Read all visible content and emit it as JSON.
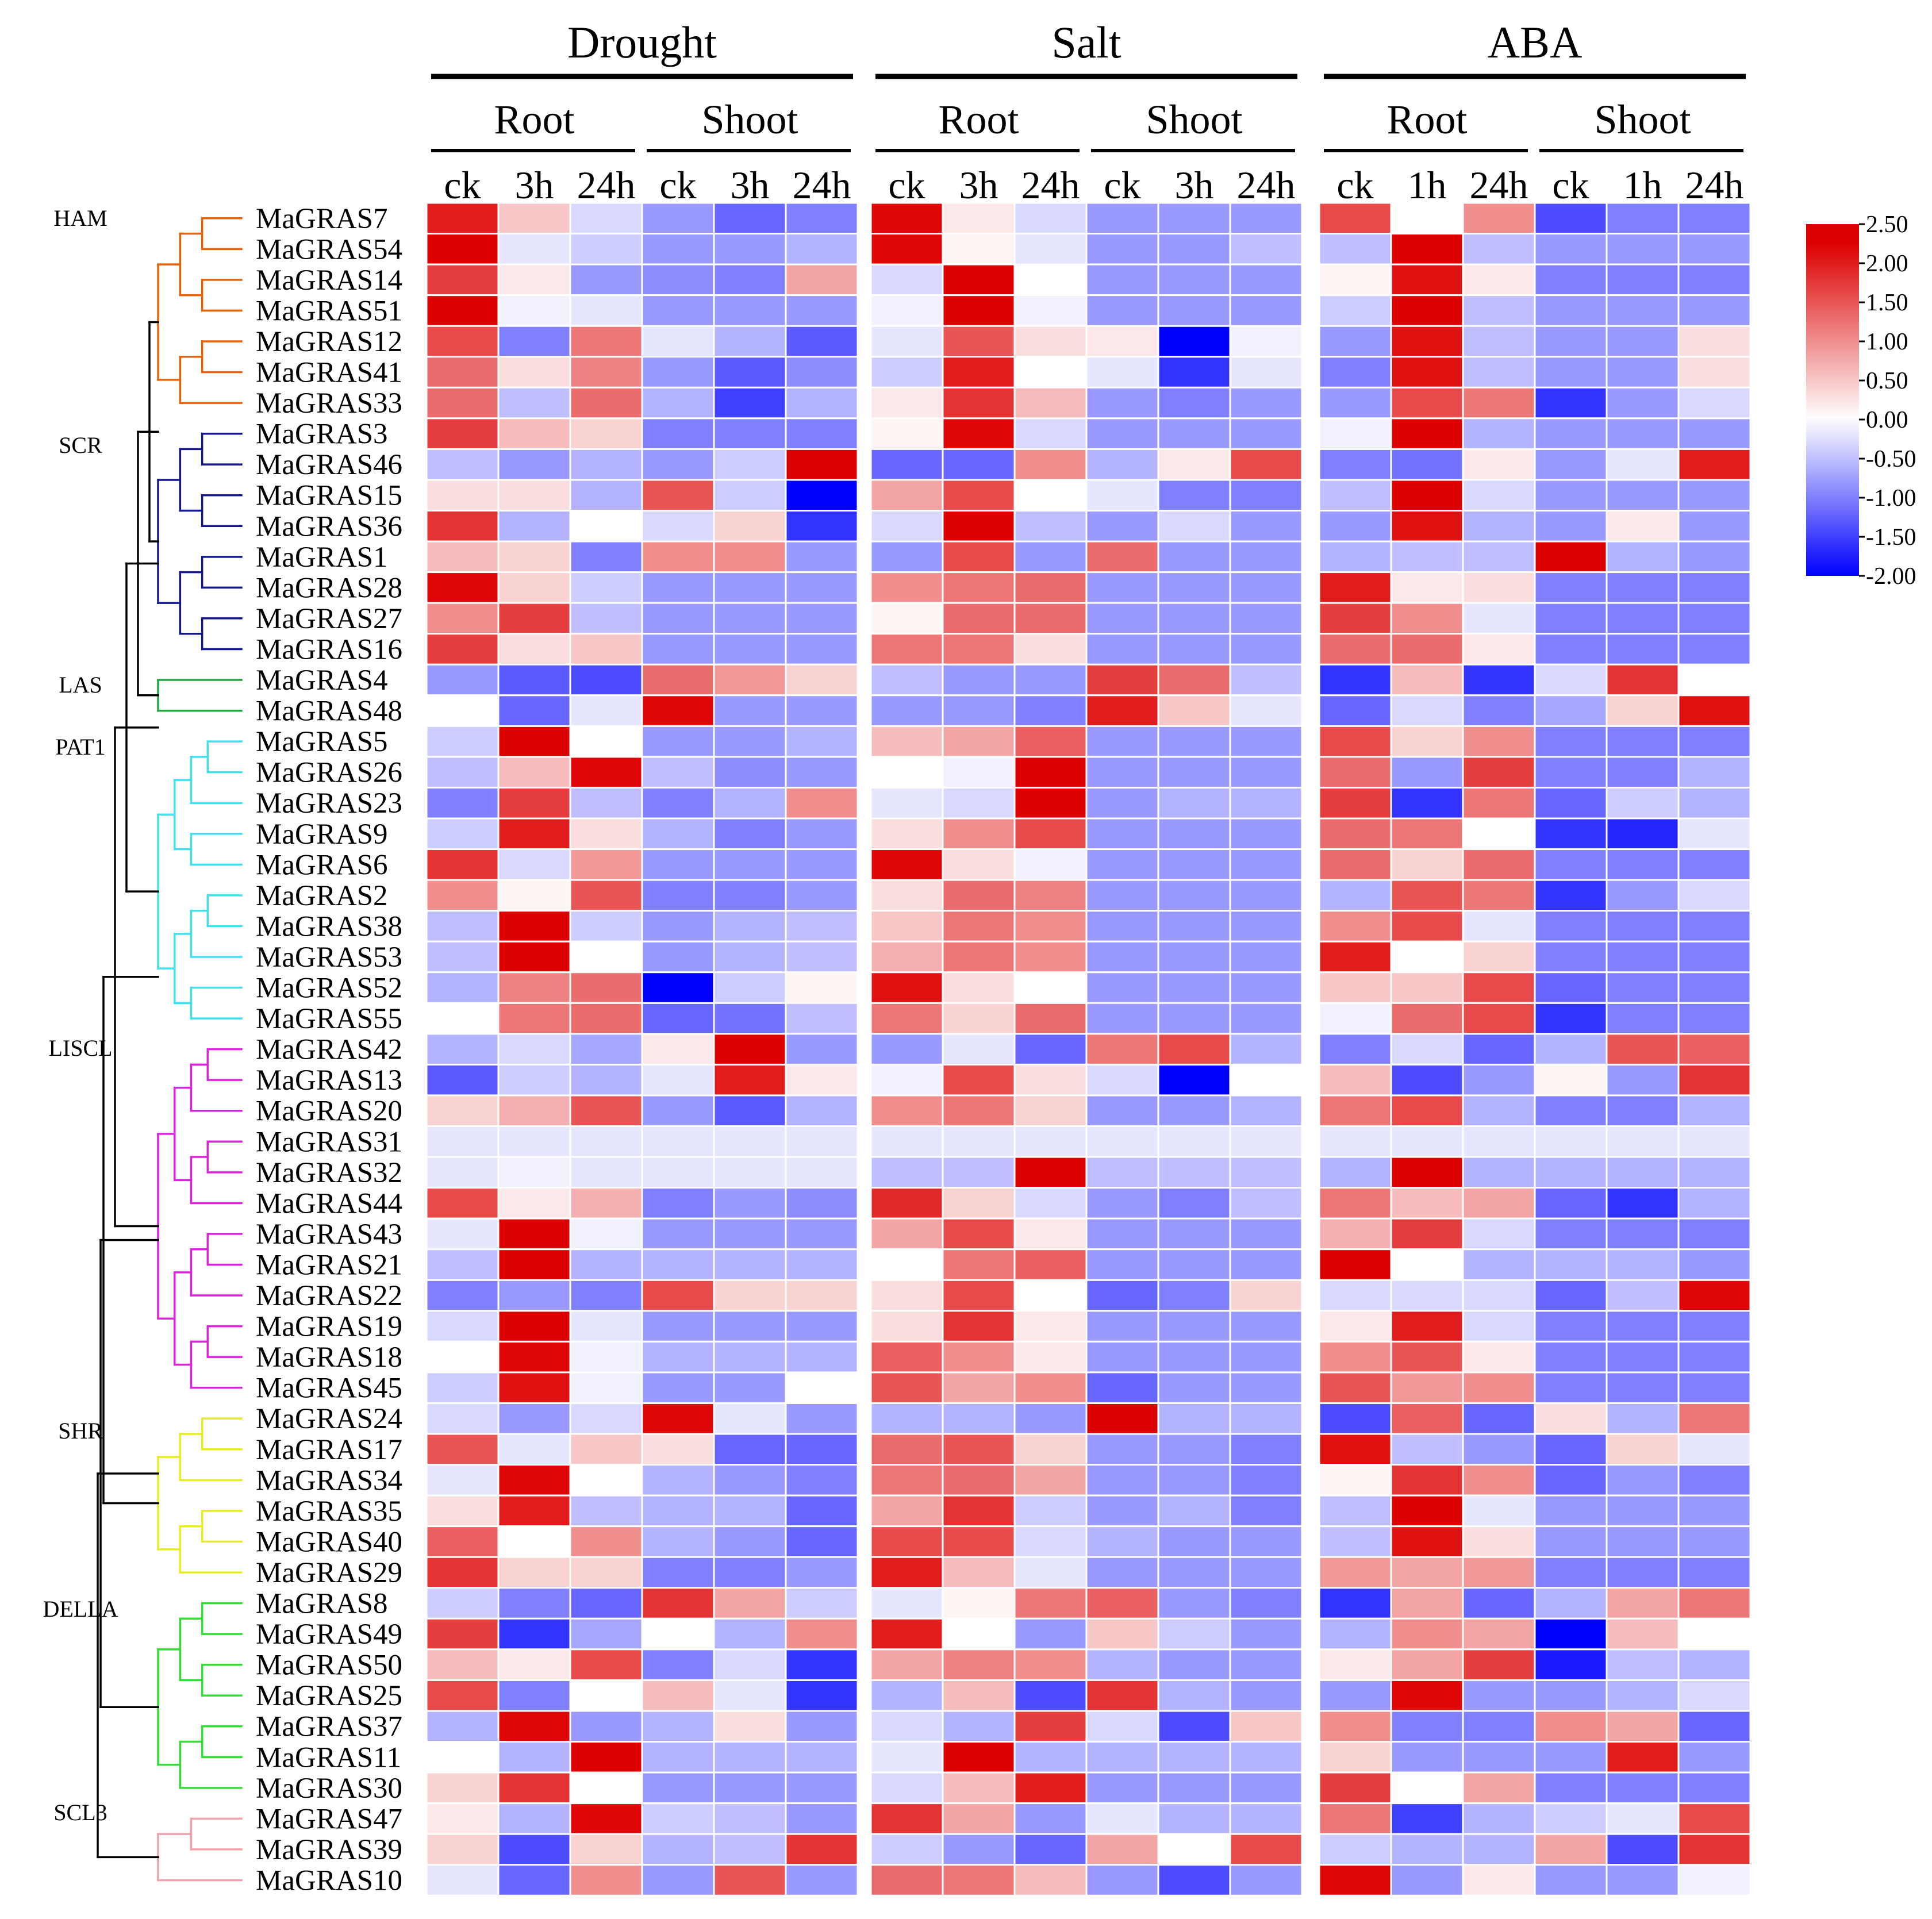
{
  "chart_data": {
    "type": "heatmap",
    "title": "",
    "groups": [
      "Drought",
      "Salt",
      "ABA"
    ],
    "tissues": [
      "Root",
      "Shoot"
    ],
    "columns": [
      {
        "group": "Drought",
        "tissue": "Root",
        "time": "ck"
      },
      {
        "group": "Drought",
        "tissue": "Root",
        "time": "3h"
      },
      {
        "group": "Drought",
        "tissue": "Root",
        "time": "24h"
      },
      {
        "group": "Drought",
        "tissue": "Shoot",
        "time": "ck"
      },
      {
        "group": "Drought",
        "tissue": "Shoot",
        "time": "3h"
      },
      {
        "group": "Drought",
        "tissue": "Shoot",
        "time": "24h"
      },
      {
        "group": "Salt",
        "tissue": "Root",
        "time": "ck"
      },
      {
        "group": "Salt",
        "tissue": "Root",
        "time": "3h"
      },
      {
        "group": "Salt",
        "tissue": "Root",
        "time": "24h"
      },
      {
        "group": "Salt",
        "tissue": "Shoot",
        "time": "ck"
      },
      {
        "group": "Salt",
        "tissue": "Shoot",
        "time": "3h"
      },
      {
        "group": "Salt",
        "tissue": "Shoot",
        "time": "24h"
      },
      {
        "group": "ABA",
        "tissue": "Root",
        "time": "ck"
      },
      {
        "group": "ABA",
        "tissue": "Root",
        "time": "1h"
      },
      {
        "group": "ABA",
        "tissue": "Root",
        "time": "24h"
      },
      {
        "group": "ABA",
        "tissue": "Shoot",
        "time": "ck"
      },
      {
        "group": "ABA",
        "tissue": "Shoot",
        "time": "1h"
      },
      {
        "group": "ABA",
        "tissue": "Shoot",
        "time": "24h"
      }
    ],
    "rows": [
      "MaGRAS7",
      "MaGRAS54",
      "MaGRAS14",
      "MaGRAS51",
      "MaGRAS12",
      "MaGRAS41",
      "MaGRAS33",
      "MaGRAS3",
      "MaGRAS46",
      "MaGRAS15",
      "MaGRAS36",
      "MaGRAS1",
      "MaGRAS28",
      "MaGRAS27",
      "MaGRAS16",
      "MaGRAS4",
      "MaGRAS48",
      "MaGRAS5",
      "MaGRAS26",
      "MaGRAS23",
      "MaGRAS9",
      "MaGRAS6",
      "MaGRAS2",
      "MaGRAS38",
      "MaGRAS53",
      "MaGRAS52",
      "MaGRAS55",
      "MaGRAS42",
      "MaGRAS13",
      "MaGRAS20",
      "MaGRAS31",
      "MaGRAS32",
      "MaGRAS44",
      "MaGRAS43",
      "MaGRAS21",
      "MaGRAS22",
      "MaGRAS19",
      "MaGRAS18",
      "MaGRAS45",
      "MaGRAS24",
      "MaGRAS17",
      "MaGRAS34",
      "MaGRAS35",
      "MaGRAS40",
      "MaGRAS29",
      "MaGRAS8",
      "MaGRAS49",
      "MaGRAS50",
      "MaGRAS25",
      "MaGRAS37",
      "MaGRAS11",
      "MaGRAS30",
      "MaGRAS47",
      "MaGRAS39",
      "MaGRAS10"
    ],
    "values": [
      [
        2.0,
        0.5,
        -0.3,
        -0.8,
        -1.2,
        -1.0,
        2.2,
        0.2,
        -0.3,
        -0.8,
        -0.8,
        -0.8,
        1.6,
        0.0,
        1.0,
        -1.4,
        -1.0,
        -1.0
      ],
      [
        2.3,
        -0.2,
        -0.4,
        -0.8,
        -0.8,
        -0.6,
        2.2,
        0.1,
        -0.2,
        -0.8,
        -0.8,
        -0.5,
        -0.5,
        2.3,
        -0.5,
        -0.8,
        -0.8,
        -0.8
      ],
      [
        1.7,
        0.2,
        -0.8,
        -0.9,
        -1.0,
        0.8,
        -0.3,
        2.3,
        0.0,
        -0.8,
        -0.8,
        -0.8,
        0.1,
        2.1,
        0.2,
        -1.0,
        -1.0,
        -1.0
      ],
      [
        2.3,
        -0.1,
        -0.2,
        -0.8,
        -0.8,
        -0.8,
        -0.1,
        2.3,
        -0.1,
        -0.8,
        -0.8,
        -0.8,
        -0.4,
        2.3,
        -0.5,
        -0.8,
        -0.8,
        -0.8
      ],
      [
        1.6,
        -1.0,
        1.2,
        -0.2,
        -0.6,
        -1.3,
        -0.2,
        1.5,
        0.3,
        0.2,
        -2.0,
        -0.1,
        -0.8,
        2.1,
        -0.5,
        -0.8,
        -0.8,
        0.3
      ],
      [
        1.3,
        0.3,
        1.1,
        -0.8,
        -1.3,
        -0.9,
        -0.4,
        2.0,
        0.0,
        -0.2,
        -1.6,
        -0.2,
        -1.0,
        2.1,
        -0.5,
        -0.8,
        -0.8,
        0.3
      ],
      [
        1.3,
        -0.5,
        1.3,
        -0.6,
        -1.5,
        -0.6,
        0.2,
        1.8,
        0.6,
        -0.8,
        -1.0,
        -0.8,
        -0.8,
        1.6,
        1.2,
        -1.6,
        -0.8,
        -0.3
      ],
      [
        1.7,
        0.6,
        0.4,
        -1.0,
        -1.0,
        -1.0,
        0.1,
        2.2,
        -0.3,
        -0.8,
        -0.8,
        -0.8,
        -0.1,
        2.3,
        -0.6,
        -0.8,
        -0.8,
        -0.8
      ],
      [
        -0.5,
        -0.8,
        -0.6,
        -0.8,
        -0.4,
        2.4,
        -1.2,
        -1.2,
        1.0,
        -0.6,
        0.2,
        1.6,
        -1.0,
        -1.1,
        0.2,
        -0.8,
        -0.2,
        2.0
      ],
      [
        0.3,
        0.3,
        -0.6,
        1.5,
        -0.4,
        -2.0,
        0.8,
        1.6,
        0.0,
        -0.2,
        -1.0,
        -1.0,
        -0.5,
        2.3,
        -0.3,
        -0.8,
        -0.8,
        -0.8
      ],
      [
        1.8,
        -0.6,
        0.0,
        -0.3,
        0.4,
        -1.6,
        -0.3,
        2.3,
        -0.5,
        -0.8,
        -0.3,
        -0.8,
        -0.8,
        2.1,
        -0.6,
        -0.8,
        0.2,
        -0.8
      ],
      [
        0.6,
        0.4,
        -1.0,
        1.0,
        1.0,
        -0.8,
        -0.8,
        1.6,
        -0.8,
        1.3,
        -0.8,
        -0.8,
        -0.6,
        -0.5,
        -0.5,
        2.3,
        -0.6,
        -0.8
      ],
      [
        2.2,
        0.4,
        -0.4,
        -0.8,
        -0.8,
        -0.8,
        1.0,
        1.2,
        1.3,
        -0.8,
        -0.8,
        -0.8,
        2.0,
        0.2,
        0.3,
        -1.0,
        -1.0,
        -1.0
      ],
      [
        1.0,
        1.7,
        -0.5,
        -0.8,
        -0.8,
        -0.8,
        0.1,
        1.3,
        1.3,
        -0.8,
        -0.8,
        -0.8,
        1.7,
        1.0,
        -0.2,
        -1.0,
        -1.0,
        -1.0
      ],
      [
        1.7,
        0.3,
        0.5,
        -0.8,
        -0.8,
        -0.8,
        1.2,
        1.2,
        0.3,
        -0.8,
        -0.8,
        -0.8,
        1.3,
        1.3,
        0.2,
        -1.0,
        -1.0,
        -1.0
      ],
      [
        -0.8,
        -1.3,
        -1.4,
        1.3,
        0.9,
        0.4,
        -0.5,
        -0.8,
        -0.8,
        1.7,
        1.3,
        -0.5,
        -1.6,
        0.6,
        -1.6,
        -0.3,
        1.8,
        0.0
      ],
      [
        0.0,
        -1.2,
        -0.2,
        2.2,
        -0.8,
        -0.8,
        -0.8,
        -0.8,
        -1.0,
        2.0,
        0.5,
        -0.2,
        -1.2,
        -0.3,
        -1.0,
        -0.7,
        0.4,
        2.1
      ],
      [
        -0.4,
        2.3,
        0.0,
        -0.8,
        -0.8,
        -0.6,
        0.6,
        0.8,
        1.4,
        -0.8,
        -0.8,
        -0.8,
        1.6,
        0.4,
        1.0,
        -1.0,
        -1.0,
        -1.0
      ],
      [
        -0.5,
        0.6,
        2.2,
        -0.5,
        -0.9,
        -0.8,
        0.0,
        -0.1,
        2.3,
        -0.8,
        -0.8,
        -0.8,
        1.3,
        -0.8,
        1.7,
        -1.0,
        -1.0,
        -0.6
      ],
      [
        -1.0,
        1.7,
        -0.5,
        -1.0,
        -0.6,
        1.0,
        -0.2,
        -0.3,
        2.3,
        -0.8,
        -0.6,
        -0.6,
        1.7,
        -1.6,
        1.2,
        -1.2,
        -0.4,
        -0.6
      ],
      [
        -0.4,
        2.0,
        0.3,
        -0.6,
        -1.0,
        -0.8,
        0.3,
        1.0,
        1.6,
        -0.8,
        -0.8,
        -0.8,
        1.3,
        1.2,
        0.0,
        -1.6,
        -1.7,
        -0.2
      ],
      [
        1.8,
        -0.3,
        0.9,
        -0.8,
        -0.8,
        -0.8,
        2.2,
        0.3,
        -0.1,
        -0.8,
        -0.8,
        -0.8,
        1.3,
        0.4,
        1.3,
        -1.0,
        -1.0,
        -1.0
      ],
      [
        1.0,
        0.1,
        1.5,
        -1.0,
        -1.0,
        -0.8,
        0.3,
        1.3,
        1.1,
        -0.8,
        -0.8,
        -0.8,
        -0.6,
        1.5,
        1.2,
        -1.6,
        -0.8,
        -0.3
      ],
      [
        -0.5,
        2.4,
        -0.4,
        -0.8,
        -0.6,
        -0.5,
        0.5,
        1.2,
        1.0,
        -0.8,
        -0.8,
        -0.8,
        1.0,
        1.6,
        -0.2,
        -1.0,
        -1.0,
        -1.0
      ],
      [
        -0.5,
        2.3,
        0.0,
        -0.8,
        -0.6,
        -0.5,
        0.7,
        1.2,
        1.0,
        -0.8,
        -0.8,
        -0.8,
        2.0,
        0.0,
        0.4,
        -1.0,
        -1.0,
        -1.0
      ],
      [
        -0.6,
        1.1,
        1.3,
        -2.0,
        -0.4,
        0.1,
        2.1,
        0.3,
        0.0,
        -0.8,
        -0.8,
        -0.8,
        0.5,
        0.5,
        1.6,
        -1.2,
        -1.0,
        -1.0
      ],
      [
        0.0,
        1.2,
        1.3,
        -1.2,
        -1.1,
        -0.5,
        1.2,
        0.4,
        1.3,
        -0.8,
        -0.8,
        -0.8,
        -0.1,
        1.3,
        1.6,
        -1.6,
        -1.0,
        -1.0
      ],
      [
        -0.6,
        -0.3,
        -0.7,
        0.2,
        2.3,
        -0.8,
        -0.8,
        -0.2,
        -1.2,
        1.2,
        1.6,
        -0.6,
        -1.0,
        -0.3,
        -1.2,
        -0.6,
        1.5,
        1.4
      ],
      [
        -1.3,
        -0.4,
        -0.6,
        -0.2,
        2.0,
        0.2,
        -0.1,
        1.6,
        0.3,
        -0.3,
        -2.0,
        0.0,
        0.6,
        -1.4,
        -0.8,
        0.1,
        -0.8,
        1.8
      ],
      [
        0.4,
        0.7,
        1.5,
        -0.8,
        -1.3,
        -0.6,
        1.0,
        1.2,
        0.4,
        -0.8,
        -0.8,
        -0.6,
        1.2,
        1.6,
        -0.6,
        -1.0,
        -1.0,
        -0.6
      ],
      [
        -0.2,
        -0.2,
        -0.2,
        -0.2,
        -0.2,
        -0.2,
        -0.2,
        -0.2,
        -0.2,
        -0.2,
        -0.2,
        -0.2,
        -0.2,
        -0.2,
        -0.2,
        -0.2,
        -0.2,
        -0.2
      ],
      [
        -0.2,
        -0.1,
        -0.2,
        -0.2,
        -0.2,
        -0.2,
        -0.5,
        -0.5,
        2.4,
        -0.5,
        -0.5,
        -0.5,
        -0.6,
        2.4,
        -0.6,
        -0.6,
        -0.6,
        -0.6
      ],
      [
        1.6,
        0.2,
        0.7,
        -1.0,
        -0.8,
        -0.9,
        1.9,
        0.4,
        -0.3,
        -0.8,
        -1.0,
        -0.5,
        1.2,
        0.6,
        0.8,
        -1.2,
        -1.6,
        -0.6
      ],
      [
        -0.2,
        2.3,
        -0.1,
        -0.8,
        -0.8,
        -0.8,
        0.8,
        1.6,
        0.2,
        -0.8,
        -0.8,
        -0.8,
        0.7,
        1.7,
        -0.3,
        -1.0,
        -1.0,
        -1.0
      ],
      [
        -0.5,
        2.4,
        -0.6,
        -0.6,
        -0.6,
        -0.6,
        0.0,
        1.2,
        1.4,
        -0.8,
        -0.8,
        -0.8,
        2.3,
        0.0,
        -0.6,
        -0.6,
        -0.6,
        -0.8
      ],
      [
        -1.0,
        -0.8,
        -1.0,
        1.6,
        0.4,
        0.4,
        0.3,
        1.6,
        0.0,
        -1.2,
        -1.0,
        0.4,
        -0.3,
        -0.3,
        -0.3,
        -1.2,
        -0.5,
        2.2
      ],
      [
        -0.3,
        2.3,
        -0.2,
        -0.8,
        -0.8,
        -0.8,
        0.3,
        1.8,
        0.2,
        -0.8,
        -0.8,
        -0.8,
        0.2,
        2.0,
        -0.3,
        -1.0,
        -1.0,
        -1.0
      ],
      [
        0.0,
        2.2,
        -0.1,
        -0.6,
        -0.6,
        -0.6,
        1.4,
        1.0,
        0.2,
        -0.8,
        -0.8,
        -0.8,
        1.0,
        1.5,
        0.2,
        -1.0,
        -1.0,
        -1.0
      ],
      [
        -0.4,
        2.1,
        -0.1,
        -0.8,
        -0.8,
        0.0,
        1.5,
        0.8,
        1.0,
        -1.2,
        -0.8,
        -0.8,
        1.5,
        0.9,
        1.0,
        -1.0,
        -1.0,
        -1.0
      ],
      [
        -0.3,
        -0.8,
        -0.3,
        2.2,
        -0.2,
        -0.8,
        -0.6,
        -0.6,
        -0.8,
        2.3,
        -0.6,
        -0.6,
        -1.4,
        1.4,
        -1.2,
        0.3,
        -0.6,
        1.2
      ],
      [
        1.5,
        -0.2,
        0.5,
        0.3,
        -1.2,
        -1.2,
        1.3,
        1.5,
        0.4,
        -0.8,
        -0.8,
        -1.0,
        2.1,
        -0.5,
        -0.8,
        -1.2,
        0.4,
        -0.2
      ],
      [
        -0.2,
        2.2,
        0.0,
        -0.6,
        -0.8,
        -1.0,
        1.2,
        1.3,
        0.8,
        -0.8,
        -0.8,
        -1.0,
        0.1,
        1.8,
        1.0,
        -1.2,
        -0.8,
        -1.0
      ],
      [
        0.3,
        2.0,
        -0.5,
        -0.6,
        -0.6,
        -1.2,
        0.8,
        1.8,
        -0.4,
        -0.8,
        -0.6,
        -1.0,
        -0.5,
        2.3,
        -0.2,
        -0.8,
        -0.8,
        -0.8
      ],
      [
        1.4,
        0.0,
        1.0,
        -0.6,
        -0.8,
        -1.2,
        1.6,
        1.6,
        -0.3,
        -0.6,
        -0.8,
        -0.8,
        -0.5,
        2.1,
        0.3,
        -0.8,
        -0.8,
        -0.8
      ],
      [
        1.8,
        0.4,
        0.4,
        -1.0,
        -1.0,
        -0.8,
        2.0,
        0.6,
        -0.2,
        -0.8,
        -0.8,
        -0.8,
        0.9,
        0.8,
        0.9,
        -1.0,
        -1.0,
        -1.0
      ],
      [
        -0.4,
        -1.0,
        -1.2,
        1.8,
        0.8,
        -0.4,
        -0.2,
        0.1,
        1.2,
        1.4,
        -0.8,
        -1.0,
        -1.6,
        0.8,
        -1.2,
        -0.6,
        0.8,
        1.2
      ],
      [
        1.7,
        -1.6,
        -0.7,
        0.0,
        -0.6,
        1.0,
        2.0,
        0.0,
        -0.8,
        0.5,
        -0.4,
        -0.8,
        -0.6,
        1.0,
        0.8,
        -2.0,
        0.6,
        0.0
      ],
      [
        0.6,
        0.2,
        1.6,
        -1.0,
        -0.3,
        -1.6,
        0.8,
        1.1,
        1.0,
        -0.6,
        -0.8,
        -0.8,
        0.2,
        0.8,
        1.7,
        -1.8,
        -0.5,
        -0.6
      ],
      [
        1.6,
        -1.0,
        0.0,
        0.6,
        -0.2,
        -1.6,
        -0.6,
        0.6,
        -1.4,
        1.8,
        -0.6,
        -0.8,
        -0.8,
        2.2,
        -0.8,
        -0.8,
        -0.6,
        -0.3
      ],
      [
        -0.6,
        2.2,
        -0.8,
        -0.6,
        0.3,
        -0.8,
        -0.3,
        -0.6,
        1.7,
        -0.3,
        -1.4,
        0.5,
        1.0,
        -1.0,
        -1.0,
        1.0,
        0.8,
        -1.2
      ],
      [
        0.0,
        -0.6,
        2.3,
        -0.6,
        -0.6,
        -0.6,
        -0.2,
        2.3,
        -0.6,
        -0.6,
        -0.6,
        -0.6,
        0.4,
        -0.8,
        -0.8,
        -0.8,
        2.0,
        -0.8
      ],
      [
        0.4,
        1.8,
        0.0,
        -0.8,
        -0.8,
        -0.8,
        -0.3,
        0.6,
        2.0,
        -0.8,
        -0.8,
        -0.8,
        1.7,
        0.0,
        0.8,
        -1.0,
        -1.0,
        -1.0
      ],
      [
        0.2,
        -0.6,
        2.2,
        -0.4,
        -0.5,
        -0.8,
        1.8,
        0.8,
        -0.8,
        -0.2,
        -0.6,
        -0.6,
        1.2,
        -1.5,
        -0.6,
        -0.4,
        -0.2,
        1.6
      ],
      [
        0.4,
        -1.4,
        0.4,
        -0.6,
        -0.5,
        1.8,
        -0.4,
        -0.8,
        -1.2,
        0.8,
        0.0,
        1.6,
        -0.4,
        -0.6,
        -0.6,
        0.8,
        -1.4,
        1.8
      ],
      [
        -0.2,
        -1.2,
        1.0,
        -0.8,
        1.5,
        -0.8,
        1.3,
        1.2,
        0.6,
        -0.8,
        -1.4,
        -0.8,
        2.2,
        -0.8,
        0.2,
        -0.8,
        -0.8,
        -0.1
      ]
    ],
    "clades": [
      {
        "name": "HAM",
        "color": "#e8620a",
        "members": [
          "MaGRAS7",
          "MaGRAS54",
          "MaGRAS14",
          "MaGRAS51",
          "MaGRAS12",
          "MaGRAS41",
          "MaGRAS33"
        ]
      },
      {
        "name": "SCR",
        "color": "#15178f",
        "members": [
          "MaGRAS3",
          "MaGRAS46",
          "MaGRAS15",
          "MaGRAS36",
          "MaGRAS1",
          "MaGRAS28",
          "MaGRAS27",
          "MaGRAS16"
        ]
      },
      {
        "name": "LAS",
        "color": "#1da838",
        "members": [
          "MaGRAS4",
          "MaGRAS48"
        ]
      },
      {
        "name": "PAT1",
        "color": "#40e0ee",
        "members": [
          "MaGRAS5",
          "MaGRAS26",
          "MaGRAS23",
          "MaGRAS9",
          "MaGRAS6",
          "MaGRAS2",
          "MaGRAS38",
          "MaGRAS53",
          "MaGRAS52",
          "MaGRAS55"
        ]
      },
      {
        "name": "LISCL",
        "color": "#e020e0",
        "members": [
          "MaGRAS42",
          "MaGRAS13",
          "MaGRAS20",
          "MaGRAS31",
          "MaGRAS32",
          "MaGRAS44",
          "MaGRAS43",
          "MaGRAS21",
          "MaGRAS22",
          "MaGRAS19",
          "MaGRAS18",
          "MaGRAS45"
        ]
      },
      {
        "name": "SHR",
        "color": "#e6ee20",
        "members": [
          "MaGRAS24",
          "MaGRAS17",
          "MaGRAS34",
          "MaGRAS35",
          "MaGRAS40",
          "MaGRAS29"
        ]
      },
      {
        "name": "DELLA",
        "color": "#30e030",
        "members": [
          "MaGRAS8",
          "MaGRAS49",
          "MaGRAS50",
          "MaGRAS25",
          "MaGRAS37",
          "MaGRAS11",
          "MaGRAS30"
        ]
      },
      {
        "name": "SCL3",
        "color": "#f4a0ac",
        "members": [
          "MaGRAS47",
          "MaGRAS39",
          "MaGRAS10"
        ]
      }
    ],
    "color_scale": {
      "min": -2.0,
      "mid": 0.0,
      "max": 2.5,
      "low_color": "#0000ff",
      "mid_color": "#ffffff",
      "high_color": "#dd0000",
      "ticks": [
        "2.50",
        "2.00",
        "1.50",
        "1.00",
        "0.50",
        "0.00",
        "-0.50",
        "-1.00",
        "-1.50",
        "-2.00"
      ],
      "tick_values": [
        2.5,
        2.0,
        1.5,
        1.0,
        0.5,
        0.0,
        -0.5,
        -1.0,
        -1.5,
        -2.0
      ]
    }
  }
}
